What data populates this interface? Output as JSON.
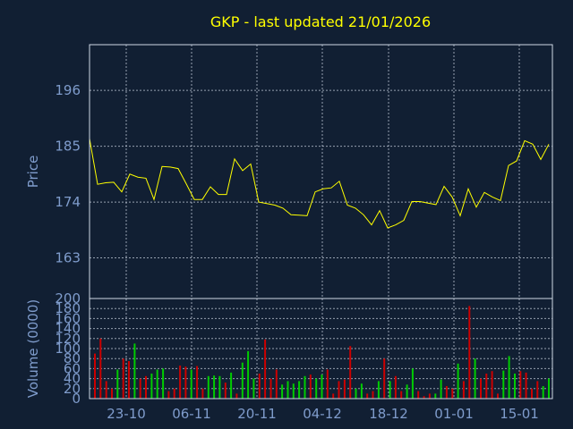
{
  "chart_data": [
    {
      "type": "line",
      "title": "GKP - last updated 21/01/2026",
      "ylabel": "Price",
      "ylim": [
        155,
        205
      ],
      "yticks": [
        163,
        174,
        185,
        196
      ],
      "series": [
        {
          "values": [
            186.5,
            177.5,
            177.8,
            177.9,
            176.0,
            179.5,
            178.9,
            178.7,
            174.5,
            181.0,
            180.9,
            180.6,
            177.6,
            174.5,
            174.5,
            177.0,
            175.5,
            175.5,
            182.5,
            180.2,
            181.5,
            174.0,
            173.7,
            173.4,
            172.8,
            171.5,
            171.4,
            171.3,
            176.0,
            176.6,
            176.8,
            178.1,
            173.4,
            172.8,
            171.5,
            169.5,
            172.3,
            168.9,
            169.5,
            170.4,
            174.1,
            174.1,
            173.8,
            173.5,
            177.1,
            175.0,
            171.3,
            176.6,
            173.0,
            175.9,
            175.0,
            174.3,
            181.2,
            182.1,
            186.1,
            185.4,
            182.4,
            185.4
          ],
          "color": "#ffff00"
        }
      ],
      "grid": true
    },
    {
      "type": "bar",
      "ylabel": "Volume (0000)",
      "ylim": [
        0,
        200
      ],
      "yticks": [
        0,
        20,
        40,
        60,
        80,
        100,
        120,
        140,
        160,
        180,
        200
      ],
      "xticks": [
        "23-10",
        "06-11",
        "20-11",
        "04-12",
        "18-12",
        "01-01",
        "15-01"
      ],
      "up_color": "#00cc00",
      "down_color": "#cc0000",
      "values": [
        90,
        120,
        35,
        20,
        58,
        80,
        75,
        110,
        40,
        45,
        50,
        58,
        60,
        15,
        20,
        66,
        64,
        58,
        65,
        20,
        45,
        46,
        45,
        32,
        52,
        10,
        72,
        95,
        40,
        50,
        118,
        40,
        58,
        28,
        35,
        30,
        35,
        45,
        48,
        40,
        48,
        58,
        10,
        35,
        38,
        105,
        20,
        30,
        10,
        15,
        35,
        80,
        35,
        45,
        15,
        28,
        60,
        15,
        5,
        10,
        10,
        38,
        25,
        20,
        70,
        35,
        185,
        80,
        40,
        50,
        55,
        10,
        56,
        85,
        50,
        55,
        52,
        20,
        35,
        25,
        40
      ],
      "up": [
        0,
        0,
        0,
        0,
        1,
        0,
        0,
        1,
        0,
        0,
        1,
        1,
        1,
        0,
        0,
        0,
        0,
        1,
        0,
        0,
        1,
        1,
        1,
        0,
        1,
        0,
        1,
        1,
        1,
        0,
        0,
        0,
        0,
        1,
        1,
        1,
        1,
        1,
        0,
        1,
        1,
        0,
        0,
        0,
        0,
        0,
        1,
        1,
        0,
        0,
        1,
        0,
        1,
        0,
        0,
        1,
        1,
        0,
        0,
        0,
        1,
        1,
        0,
        0,
        1,
        0,
        0,
        1,
        0,
        0,
        0,
        0,
        1,
        1,
        1,
        0,
        0,
        0,
        0,
        1,
        1
      ]
    }
  ]
}
